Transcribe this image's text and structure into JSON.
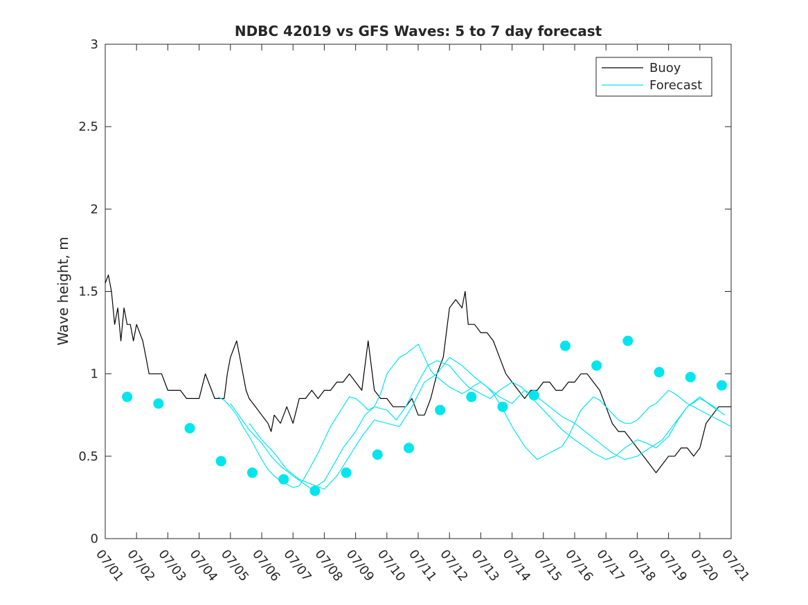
{
  "chart_data": {
    "type": "line",
    "title": "NDBC 42019 vs GFS Waves: 5 to 7 day forecast",
    "ylabel": "Wave height, m",
    "xlabel": "",
    "xlim": [
      0,
      20
    ],
    "ylim": [
      0,
      3
    ],
    "yticks": [
      0,
      0.5,
      1,
      1.5,
      2,
      2.5,
      3
    ],
    "ytick_labels": [
      "0",
      "0.5",
      "1",
      "1.5",
      "2",
      "2.5",
      "3"
    ],
    "xtick_labels": [
      "07/01",
      "07/02",
      "07/03",
      "07/04",
      "07/05",
      "07/06",
      "07/07",
      "07/08",
      "07/09",
      "07/10",
      "07/11",
      "07/12",
      "07/13",
      "07/14",
      "07/15",
      "07/16",
      "07/17",
      "07/18",
      "07/19",
      "07/20",
      "07/21"
    ],
    "legend": {
      "placement": "top-right",
      "entries": [
        {
          "label": "Buoy",
          "color": "#000000"
        },
        {
          "label": "Forecast",
          "color": "#00e5ee"
        }
      ]
    },
    "series": [
      {
        "name": "Buoy",
        "color": "#000000",
        "x": [
          0.0,
          0.1,
          0.2,
          0.3,
          0.4,
          0.5,
          0.6,
          0.7,
          0.8,
          0.9,
          1.0,
          1.2,
          1.3,
          1.4,
          1.6,
          1.8,
          2.0,
          2.2,
          2.4,
          2.6,
          2.8,
          3.0,
          3.2,
          3.4,
          3.5,
          3.6,
          3.8,
          3.9,
          4.0,
          4.2,
          4.3,
          4.4,
          4.5,
          4.6,
          4.8,
          5.0,
          5.2,
          5.3,
          5.4,
          5.6,
          5.8,
          6.0,
          6.2,
          6.4,
          6.6,
          6.8,
          7.0,
          7.2,
          7.4,
          7.6,
          7.8,
          8.0,
          8.2,
          8.4,
          8.6,
          8.8,
          8.9,
          9.0,
          9.2,
          9.4,
          9.6,
          9.8,
          10.0,
          10.2,
          10.4,
          10.6,
          10.8,
          10.9,
          11.0,
          11.2,
          11.4,
          11.5,
          11.6,
          11.8,
          12.0,
          12.2,
          12.4,
          12.6,
          12.8,
          13.0,
          13.2,
          13.4,
          13.6,
          13.8,
          14.0,
          14.2,
          14.4,
          14.6,
          14.8,
          15.0,
          15.2,
          15.4,
          15.6,
          15.8,
          16.0,
          16.2,
          16.4,
          16.6,
          16.8,
          17.0,
          17.2,
          17.4,
          17.6,
          17.8,
          18.0,
          18.2,
          18.4,
          18.6,
          18.8,
          19.0,
          19.2,
          19.4,
          19.6,
          19.8,
          20.0
        ],
        "y": [
          1.55,
          1.6,
          1.5,
          1.3,
          1.4,
          1.2,
          1.4,
          1.3,
          1.3,
          1.2,
          1.3,
          1.2,
          1.1,
          1.0,
          1.0,
          1.0,
          0.9,
          0.9,
          0.9,
          0.85,
          0.85,
          0.85,
          1.0,
          0.9,
          0.85,
          0.85,
          0.85,
          1.0,
          1.1,
          1.2,
          1.1,
          1.0,
          0.9,
          0.85,
          0.8,
          0.75,
          0.7,
          0.65,
          0.75,
          0.7,
          0.8,
          0.7,
          0.85,
          0.85,
          0.9,
          0.85,
          0.9,
          0.9,
          0.95,
          0.95,
          1.0,
          0.95,
          0.9,
          1.2,
          0.9,
          0.85,
          0.85,
          0.85,
          0.8,
          0.8,
          0.8,
          0.85,
          0.75,
          0.75,
          0.85,
          1.0,
          1.1,
          1.25,
          1.4,
          1.45,
          1.4,
          1.5,
          1.3,
          1.3,
          1.25,
          1.25,
          1.2,
          1.1,
          1.0,
          0.95,
          0.9,
          0.85,
          0.9,
          0.9,
          0.95,
          0.95,
          0.9,
          0.9,
          0.95,
          0.95,
          1.0,
          1.0,
          0.95,
          0.9,
          0.8,
          0.7,
          0.65,
          0.65,
          0.6,
          0.55,
          0.5,
          0.45,
          0.4,
          0.45,
          0.5,
          0.5,
          0.55,
          0.55,
          0.5,
          0.55,
          0.7,
          0.75,
          0.8,
          0.8,
          0.8
        ]
      },
      {
        "name": "Forecast",
        "color": "#00e5ee",
        "x": [
          3.6,
          3.8,
          4.0,
          4.2,
          4.4,
          4.6,
          4.8,
          5.0,
          5.2,
          5.4,
          5.6,
          5.8,
          6.0,
          6.2,
          6.4,
          6.6,
          6.8,
          7.0,
          7.2,
          7.4,
          7.6,
          7.8,
          8.0,
          8.2,
          8.4,
          8.6,
          8.8,
          9.0,
          9.2,
          9.4,
          9.6,
          9.8,
          10.0,
          10.2,
          10.4,
          10.6,
          10.8,
          11.0,
          11.2,
          11.4,
          11.6,
          11.8,
          12.0,
          12.2,
          12.4,
          12.6,
          12.8,
          13.0,
          13.2,
          13.4,
          13.6,
          13.8,
          14.0,
          14.2,
          14.4,
          14.6,
          14.8,
          15.0,
          15.2,
          15.4,
          15.6,
          15.8,
          16.0,
          16.2,
          16.4,
          16.6,
          16.8,
          17.0,
          17.2,
          17.4,
          17.6,
          17.8,
          18.0,
          18.2,
          18.4,
          18.6,
          18.8,
          19.0,
          19.2,
          19.4,
          19.6,
          19.8,
          20.0
        ],
        "y": [
          0.86,
          0.84,
          0.8,
          0.75,
          0.68,
          0.62,
          0.55,
          0.48,
          0.42,
          0.38,
          0.35,
          0.33,
          0.31,
          0.32,
          0.38,
          0.45,
          0.52,
          0.6,
          0.68,
          0.74,
          0.8,
          0.86,
          0.85,
          0.82,
          0.78,
          0.8,
          0.88,
          1.0,
          1.05,
          1.1,
          1.12,
          1.15,
          1.18,
          1.1,
          1.02,
          0.98,
          0.95,
          0.92,
          0.9,
          0.88,
          0.9,
          0.93,
          0.95,
          0.92,
          0.88,
          0.82,
          0.75,
          0.68,
          0.62,
          0.56,
          0.52,
          0.48,
          0.5,
          0.52,
          0.54,
          0.56,
          0.62,
          0.7,
          0.78,
          0.82,
          0.86,
          0.84,
          0.8,
          0.76,
          0.72,
          0.7,
          0.7,
          0.72,
          0.76,
          0.8,
          0.82,
          0.86,
          0.9,
          0.88,
          0.85,
          0.82,
          0.8,
          0.78,
          0.76,
          0.74,
          0.72,
          0.7,
          0.68
        ]
      },
      {
        "name": "",
        "color": "#00e5ee",
        "x": [
          4.0,
          4.3,
          4.6,
          5.0,
          5.3,
          5.6,
          6.0,
          6.3,
          6.6,
          7.0,
          7.3,
          7.6,
          8.0,
          8.3,
          8.6,
          9.0,
          9.3,
          9.6,
          10.0,
          10.3,
          10.6,
          11.0,
          11.3,
          11.6,
          12.0,
          12.3,
          12.6,
          13.0,
          13.3,
          13.6,
          14.0,
          14.3,
          14.6,
          15.0,
          15.3,
          15.6,
          16.0,
          16.3,
          16.6,
          17.0,
          17.3,
          17.6,
          18.0,
          18.3,
          18.6,
          19.0,
          19.3,
          19.6
        ],
        "y": [
          0.82,
          0.74,
          0.66,
          0.58,
          0.5,
          0.44,
          0.38,
          0.34,
          0.3,
          0.35,
          0.45,
          0.55,
          0.65,
          0.75,
          0.8,
          0.78,
          0.72,
          0.8,
          0.95,
          1.05,
          1.08,
          1.05,
          0.98,
          0.92,
          0.88,
          0.85,
          0.9,
          0.95,
          0.92,
          0.86,
          0.78,
          0.72,
          0.66,
          0.6,
          0.56,
          0.52,
          0.48,
          0.5,
          0.55,
          0.6,
          0.58,
          0.55,
          0.62,
          0.72,
          0.8,
          0.85,
          0.82,
          0.78
        ]
      },
      {
        "name": "",
        "color": "#00e5ee",
        "x": [
          4.6,
          5.0,
          5.4,
          5.8,
          6.2,
          6.6,
          7.0,
          7.4,
          7.8,
          8.2,
          8.6,
          9.0,
          9.4,
          9.8,
          10.2,
          10.6,
          11.0,
          11.4,
          11.8,
          12.2,
          12.6,
          13.0,
          13.4,
          13.8,
          14.2,
          14.6,
          15.0,
          15.4,
          15.8,
          16.2,
          16.6,
          17.0,
          17.4,
          17.8,
          18.2,
          18.6,
          19.0,
          19.4,
          19.8
        ],
        "y": [
          0.7,
          0.6,
          0.52,
          0.42,
          0.36,
          0.33,
          0.3,
          0.38,
          0.5,
          0.62,
          0.72,
          0.7,
          0.68,
          0.8,
          0.95,
          1.0,
          1.1,
          1.05,
          0.98,
          0.92,
          0.86,
          0.82,
          0.9,
          0.86,
          0.8,
          0.74,
          0.7,
          0.64,
          0.58,
          0.52,
          0.48,
          0.5,
          0.55,
          0.6,
          0.7,
          0.8,
          0.86,
          0.8,
          0.75
        ]
      },
      {
        "name": "",
        "color": "#00e5ee",
        "x": [
          0.7,
          1.7,
          2.7,
          3.7,
          4.7,
          5.7,
          6.7,
          7.7,
          8.7,
          9.7,
          10.7,
          11.7,
          12.7,
          13.7,
          14.7,
          15.7,
          16.7,
          17.7,
          18.7,
          19.7
        ],
        "y": [
          0.86,
          0.82,
          0.67,
          0.47,
          0.4,
          0.36,
          0.29,
          0.4,
          0.51,
          0.55,
          0.78,
          0.86,
          0.8,
          0.87,
          1.17,
          1.05,
          1.2,
          1.01,
          0.98,
          0.93
        ],
        "markers": true
      }
    ],
    "markers_note": "",
    "grid": false
  }
}
